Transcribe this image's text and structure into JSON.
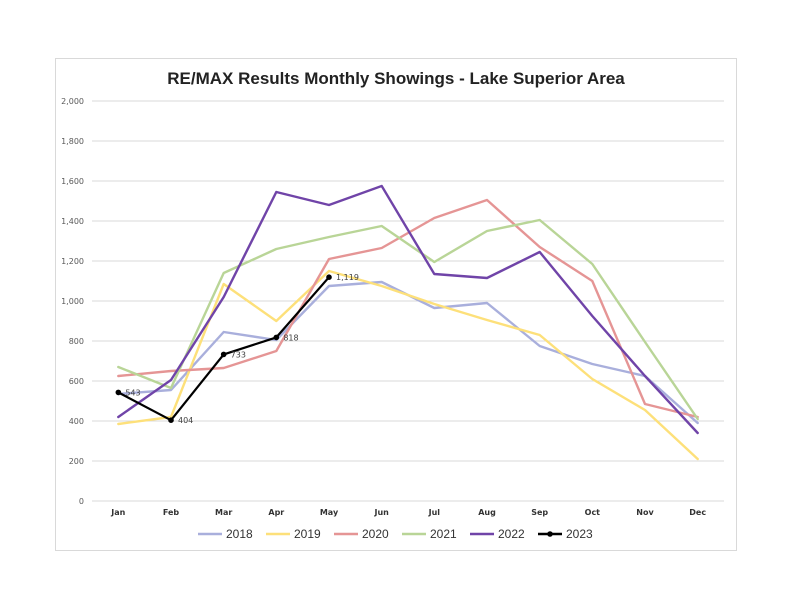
{
  "chart_data": {
    "type": "line",
    "title": "RE/MAX Results Monthly Showings - Lake Superior Area",
    "xlabel": "",
    "ylabel": "",
    "ylim": [
      0,
      2000
    ],
    "yticks": [
      0,
      200,
      400,
      600,
      800,
      1000,
      1200,
      1400,
      1600,
      1800,
      2000
    ],
    "ytick_labels": [
      "0",
      "200",
      "400",
      "600",
      "800",
      "1,000",
      "1,200",
      "1,400",
      "1,600",
      "1,800",
      "2,000"
    ],
    "categories": [
      "Jan",
      "Feb",
      "Mar",
      "Apr",
      "May",
      "Jun",
      "Jul",
      "Aug",
      "Sep",
      "Oct",
      "Nov",
      "Dec"
    ],
    "grid": "horizontal",
    "legend_position": "bottom",
    "series": [
      {
        "name": "2018",
        "color": "#a9afdc",
        "values": [
          535,
          555,
          845,
          805,
          1075,
          1095,
          965,
          990,
          775,
          685,
          625,
          390
        ]
      },
      {
        "name": "2019",
        "color": "#fde07a",
        "values": [
          385,
          420,
          1085,
          900,
          1150,
          1075,
          985,
          905,
          830,
          610,
          455,
          210
        ]
      },
      {
        "name": "2020",
        "color": "#e59595",
        "values": [
          625,
          650,
          665,
          750,
          1210,
          1265,
          1415,
          1505,
          1270,
          1100,
          485,
          420
        ]
      },
      {
        "name": "2021",
        "color": "#b9d597",
        "values": [
          670,
          565,
          1140,
          1260,
          1320,
          1375,
          1195,
          1350,
          1405,
          1185,
          795,
          410
        ]
      },
      {
        "name": "2022",
        "color": "#7044a8",
        "values": [
          420,
          605,
          1020,
          1545,
          1480,
          1575,
          1135,
          1115,
          1245,
          925,
          625,
          340
        ]
      },
      {
        "name": "2023",
        "color": "#000000",
        "markers": true,
        "values": [
          543,
          404,
          733,
          818,
          1119,
          null,
          null,
          null,
          null,
          null,
          null,
          null
        ],
        "labels": [
          "543",
          "404",
          "733",
          "818",
          "1,119"
        ]
      }
    ]
  }
}
